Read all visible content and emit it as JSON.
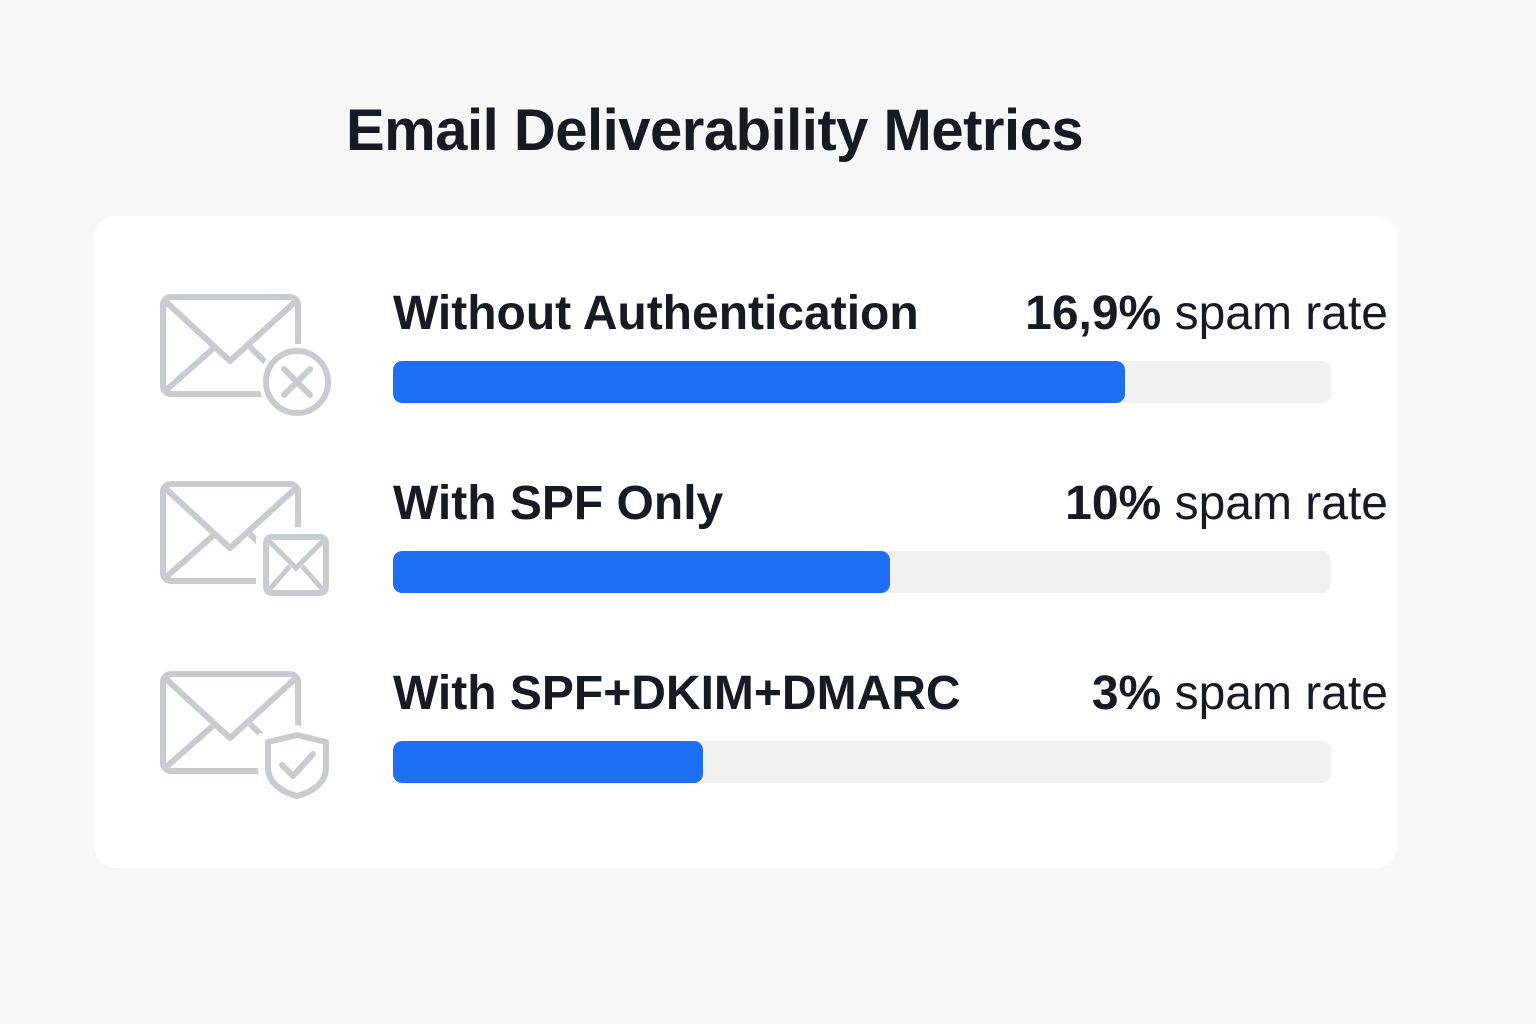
{
  "title": "Email Deliverability Metrics",
  "colors": {
    "bar": "#1c6ef5",
    "track": "#f1f1f1",
    "icon": "#c8cbd0"
  },
  "rows": [
    {
      "label": "Without Authentication",
      "value_text": "16,9%",
      "unit_text": " spam rate",
      "icon": "envelope-x-icon"
    },
    {
      "label": "With SPF Only",
      "value_text": "10%",
      "unit_text": " spam rate",
      "icon": "envelope-stack-icon"
    },
    {
      "label": "With SPF+DKIM+DMARC",
      "value_text": "3%",
      "unit_text": " spam rate",
      "icon": "envelope-shield-icon"
    }
  ],
  "chart_data": {
    "type": "bar",
    "orientation": "horizontal",
    "title": "Email Deliverability Metrics",
    "categories": [
      "Without Authentication",
      "With SPF Only",
      "With SPF+DKIM+DMARC"
    ],
    "values": [
      16.9,
      10,
      3
    ],
    "bar_fill_fraction": [
      0.78,
      0.53,
      0.33
    ],
    "value_labels": [
      "16,9% spam rate",
      "10% spam rate",
      "3% spam rate"
    ],
    "unit": "% spam rate",
    "grid": false,
    "legend": "none"
  }
}
